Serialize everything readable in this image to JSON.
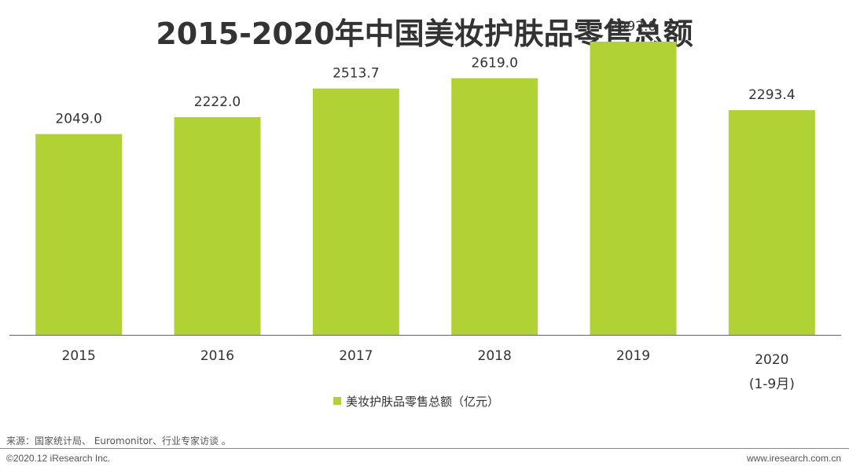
{
  "header": {
    "title": "2015-2020年中国美妆护肤品零售总额"
  },
  "legend": {
    "label": "美妆护肤品零售总额（亿元）"
  },
  "footer": {
    "source": "来源：国家统计局、 Euromonitor、行业专家访谈 。",
    "copyright": "©2020.12 iResearch Inc.",
    "website": "www.iresearch.com.cn"
  },
  "colors": {
    "bar": "#b1d235",
    "axis": "#666666",
    "title": "#333333",
    "label": "#333333"
  },
  "chart_data": {
    "type": "bar",
    "title": "2015-2020年中国美妆护肤品零售总额",
    "categories": [
      [
        "2015"
      ],
      [
        "2016"
      ],
      [
        "2017"
      ],
      [
        "2018"
      ],
      [
        "2019"
      ],
      [
        "2020",
        "(1-9月)"
      ]
    ],
    "series": [
      {
        "name": "美妆护肤品零售总额（亿元）",
        "values": [
          2049.0,
          2222.0,
          2513.7,
          2619.0,
          2992.0,
          2293.4
        ],
        "labels": [
          "2049.0",
          "2222.0",
          "2513.7",
          "2619.0",
          "2992.0",
          "2293.4"
        ]
      }
    ],
    "ylim": [
      0,
      3000
    ],
    "grid": false,
    "legend": "bottom-center"
  }
}
